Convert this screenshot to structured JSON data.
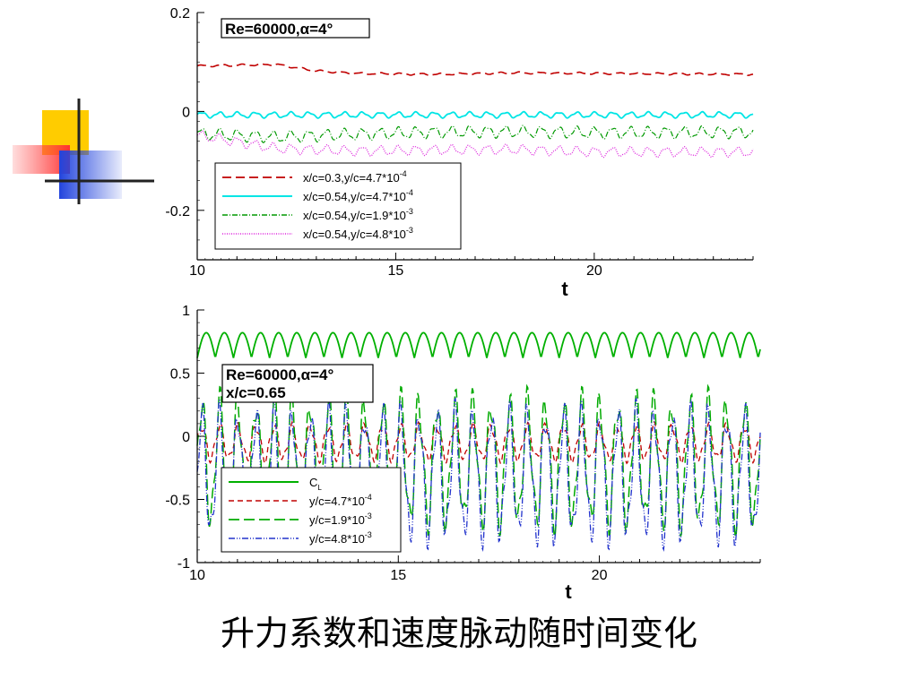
{
  "caption": "升力系数和速度脉动随时间变化",
  "charts": [
    {
      "type": "line",
      "annotation": "Re=60000,α=4°",
      "xlabel": "t",
      "ylabel": "",
      "xlim": [
        10,
        24
      ],
      "ylim": [
        -0.3,
        0.2
      ],
      "xticks": [
        10,
        15,
        20
      ],
      "yticks": [
        -0.2,
        0,
        0.2
      ],
      "ytick_labels": [
        "-0.2",
        "0",
        "0.2"
      ],
      "legend_position": "bottom-left",
      "series": [
        {
          "name": "x/c=0.3,y/c=4.7*10",
          "exp": "-4",
          "color": "#c00000",
          "dash": "10,5",
          "width": 1.6,
          "base": [
            [
              10,
              0.092
            ],
            [
              12,
              0.095
            ],
            [
              13,
              0.082
            ],
            [
              14,
              0.077
            ],
            [
              16,
              0.075
            ],
            [
              18,
              0.078
            ],
            [
              20,
              0.077
            ],
            [
              22,
              0.076
            ],
            [
              24,
              0.075
            ]
          ],
          "amp": 0.002,
          "period": 0.5
        },
        {
          "name": "x/c=0.54,y/c=4.7*10",
          "exp": "-4",
          "color": "#00e5e5",
          "dash": "",
          "width": 1.8,
          "base": [
            [
              10,
              -0.007
            ],
            [
              24,
              -0.007
            ]
          ],
          "amp": 0.006,
          "period": 0.45
        },
        {
          "name": "x/c=0.54,y/c=1.9*10",
          "exp": "-3",
          "color": "#009900",
          "dash": "6,2,1,2",
          "width": 1.2,
          "base": [
            [
              10,
              -0.045
            ],
            [
              12,
              -0.052
            ],
            [
              14,
              -0.046
            ],
            [
              16,
              -0.042
            ],
            [
              18,
              -0.041
            ],
            [
              20,
              -0.043
            ],
            [
              24,
              -0.042
            ]
          ],
          "amp": 0.012,
          "period": 0.45
        },
        {
          "name": "x/c=0.54,y/c=4.8*10",
          "exp": "-3",
          "color": "#dd22dd",
          "dash": "1,1.5",
          "width": 1.3,
          "base": [
            [
              10,
              -0.048
            ],
            [
              12,
              -0.075
            ],
            [
              14,
              -0.08
            ],
            [
              16,
              -0.078
            ],
            [
              18,
              -0.077
            ],
            [
              20,
              -0.082
            ],
            [
              24,
              -0.082
            ]
          ],
          "amp": 0.01,
          "period": 0.45
        }
      ]
    },
    {
      "type": "line",
      "annotation": "Re=60000,α=4°",
      "annotation2": "x/c=0.65",
      "xlabel": "t",
      "ylabel": "",
      "xlim": [
        10,
        24
      ],
      "ylim": [
        -1,
        1
      ],
      "xticks": [
        10,
        15,
        20
      ],
      "yticks": [
        -1,
        -0.5,
        0,
        0.5,
        1
      ],
      "ytick_labels": [
        "-1",
        "-0.5",
        "0",
        "0.5",
        "1"
      ],
      "legend_position": "bottom-left",
      "series": [
        {
          "name": "C",
          "sub": "L",
          "exp": "",
          "color": "#00b000",
          "dash": "",
          "width": 1.8,
          "base": [
            [
              10,
              0.72
            ],
            [
              24,
              0.72
            ]
          ],
          "amp": 0.1,
          "period": 0.45
        },
        {
          "name": "y/c=4.7*10",
          "exp": "-4",
          "color": "#c00000",
          "dash": "6,4",
          "width": 1.3,
          "base": [
            [
              10,
              -0.05
            ],
            [
              24,
              -0.05
            ]
          ],
          "amp": 0.15,
          "period": 0.45
        },
        {
          "name": "y/c=1.9*10",
          "exp": "-3",
          "color": "#00aa00",
          "dash": "12,5",
          "width": 1.5,
          "base": [
            [
              10,
              -0.2
            ],
            [
              24,
              -0.2
            ]
          ],
          "amp": 0.55,
          "period": 0.45
        },
        {
          "name": "y/c=4.8*10",
          "exp": "-3",
          "color": "#2233cc",
          "dash": "7,2,1,2,1,2",
          "width": 1.3,
          "base": [
            [
              10,
              -0.3
            ],
            [
              24,
              -0.3
            ]
          ],
          "amp": 0.55,
          "period": 0.45
        }
      ]
    }
  ]
}
